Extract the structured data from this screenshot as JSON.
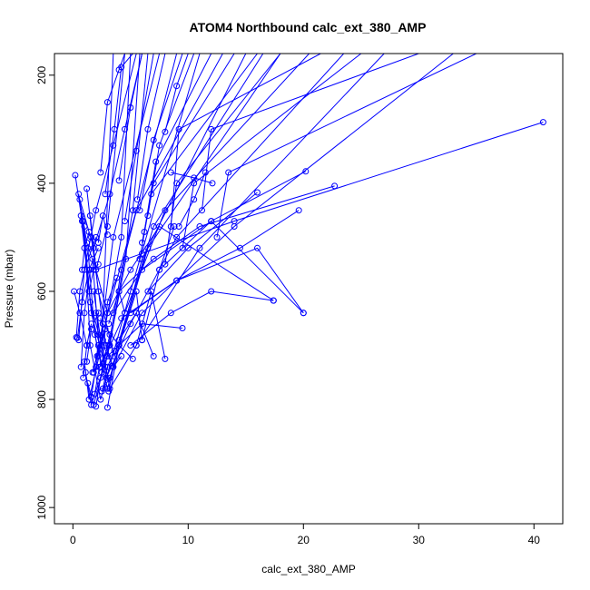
{
  "chart_data": {
    "type": "line",
    "title": "ATOM4 Northbound calc_ext_380_AMP",
    "xlabel": "calc_ext_380_AMP",
    "ylabel": "Pressure (mbar)",
    "xlim": [
      -1.6,
      42.5
    ],
    "ylim": [
      1030,
      160
    ],
    "y_reversed": true,
    "x_ticks": [
      0,
      10,
      20,
      30,
      40
    ],
    "y_ticks": [
      200,
      400,
      600,
      800,
      1000
    ],
    "line_color": "#0000ff",
    "point_color": "#0000ff",
    "marker": "open-circle",
    "grid": false,
    "legend": "none",
    "series": [
      {
        "values": [
          [
            0.5,
            690
          ],
          [
            1.0,
            560
          ],
          [
            2.0,
            450
          ],
          [
            3.5,
            330
          ],
          [
            5.5,
            160
          ]
        ]
      },
      {
        "values": [
          [
            0.2,
            385
          ],
          [
            0.8,
            470
          ],
          [
            1.5,
            620
          ],
          [
            2.5,
            700
          ],
          [
            3.5,
            160
          ]
        ]
      },
      {
        "values": [
          [
            0.5,
            420
          ],
          [
            1.2,
            510
          ],
          [
            2.0,
            560
          ],
          [
            3.0,
            480
          ],
          [
            4.5,
            160
          ]
        ]
      },
      {
        "values": [
          [
            0.6,
            430
          ],
          [
            1.8,
            520
          ],
          [
            3.2,
            420
          ],
          [
            4.5,
            300
          ],
          [
            6.0,
            160
          ]
        ]
      },
      {
        "values": [
          [
            0.7,
            460
          ],
          [
            1.4,
            600
          ],
          [
            2.2,
            720
          ],
          [
            3.5,
            500
          ],
          [
            7.5,
            160
          ]
        ]
      },
      {
        "values": [
          [
            0.9,
            470
          ],
          [
            1.6,
            640
          ],
          [
            2.8,
            740
          ],
          [
            4.2,
            560
          ],
          [
            9.0,
            160
          ]
        ]
      },
      {
        "values": [
          [
            1.0,
            480
          ],
          [
            1.5,
            700
          ],
          [
            2.4,
            800
          ],
          [
            5.0,
            600
          ],
          [
            11.0,
            160
          ]
        ]
      },
      {
        "values": [
          [
            1.2,
            410
          ],
          [
            2.0,
            560
          ],
          [
            3.0,
            640
          ],
          [
            5.5,
            450
          ],
          [
            13.0,
            160
          ]
        ]
      },
      {
        "values": [
          [
            1.3,
            520
          ],
          [
            1.9,
            680
          ],
          [
            3.0,
            780
          ],
          [
            6.0,
            540
          ],
          [
            15.0,
            160
          ]
        ]
      },
      {
        "values": [
          [
            1.5,
            460
          ],
          [
            2.2,
            600
          ],
          [
            3.6,
            720
          ],
          [
            7.0,
            480
          ],
          [
            16.5,
            160
          ]
        ]
      },
      {
        "values": [
          [
            1.6,
            500
          ],
          [
            2.6,
            660
          ],
          [
            4.0,
            700
          ],
          [
            6.5,
            520
          ],
          [
            18.0,
            160
          ]
        ]
      },
      {
        "values": [
          [
            1.7,
            540
          ],
          [
            2.4,
            740
          ],
          [
            4.5,
            640
          ],
          [
            8.0,
            450
          ],
          [
            20.5,
            160
          ]
        ]
      },
      {
        "values": [
          [
            1.8,
            600
          ],
          [
            2.9,
            760
          ],
          [
            5.0,
            660
          ],
          [
            9.0,
            500
          ],
          [
            23.5,
            160
          ]
        ]
      },
      {
        "values": [
          [
            2.0,
            640
          ],
          [
            3.2,
            780
          ],
          [
            5.5,
            700
          ],
          [
            11.0,
            520
          ],
          [
            27.0,
            160
          ]
        ]
      },
      {
        "values": [
          [
            2.2,
            680
          ],
          [
            3.5,
            740
          ],
          [
            6.0,
            640
          ],
          [
            14.0,
            480
          ],
          [
            33.0,
            160
          ]
        ]
      },
      {
        "values": [
          [
            1.0,
            730
          ],
          [
            1.4,
            800
          ],
          [
            2.6,
            690
          ],
          [
            4.2,
            500
          ],
          [
            5.0,
            160
          ]
        ]
      },
      {
        "values": [
          [
            1.1,
            750
          ],
          [
            1.6,
            810
          ],
          [
            3.0,
            720
          ],
          [
            4.6,
            540
          ],
          [
            5.8,
            160
          ]
        ]
      },
      {
        "values": [
          [
            1.3,
            770
          ],
          [
            1.8,
            810
          ],
          [
            3.2,
            700
          ],
          [
            5.2,
            450
          ],
          [
            6.5,
            160
          ]
        ]
      },
      {
        "values": [
          [
            2.4,
            380
          ],
          [
            3.0,
            250
          ],
          [
            4.0,
            190
          ],
          [
            4.5,
            160
          ]
        ]
      },
      {
        "values": [
          [
            2.8,
            420
          ],
          [
            3.6,
            300
          ],
          [
            4.2,
            185
          ],
          [
            5.2,
            160
          ]
        ]
      },
      {
        "values": [
          [
            4.0,
            395
          ],
          [
            5.0,
            260
          ],
          [
            6.0,
            160
          ]
        ]
      },
      {
        "values": [
          [
            4.5,
            470
          ],
          [
            5.5,
            340
          ],
          [
            7.0,
            160
          ]
        ]
      },
      {
        "values": [
          [
            5.6,
            430
          ],
          [
            6.5,
            300
          ],
          [
            8.0,
            160
          ]
        ]
      },
      {
        "values": [
          [
            5.8,
            450
          ],
          [
            7.0,
            320
          ],
          [
            9.5,
            160
          ]
        ]
      },
      {
        "values": [
          [
            6.5,
            460
          ],
          [
            7.5,
            330
          ],
          [
            10.5,
            160
          ]
        ]
      },
      {
        "values": [
          [
            6.2,
            490
          ],
          [
            7.2,
            360
          ],
          [
            12.0,
            160
          ]
        ]
      },
      {
        "values": [
          [
            6.0,
            510
          ],
          [
            7.0,
            400
          ],
          [
            14.0,
            160
          ]
        ]
      },
      {
        "values": [
          [
            5.8,
            540
          ],
          [
            6.8,
            420
          ],
          [
            16.0,
            160
          ]
        ]
      },
      {
        "values": [
          [
            8.0,
            550
          ],
          [
            9.0,
            400
          ],
          [
            18.0,
            160
          ]
        ]
      },
      {
        "values": [
          [
            8.5,
            480
          ],
          [
            9.2,
            300
          ],
          [
            21.5,
            160
          ]
        ]
      },
      {
        "values": [
          [
            9.5,
            520
          ],
          [
            10.5,
            400
          ],
          [
            25.0,
            160
          ]
        ]
      },
      {
        "values": [
          [
            11.2,
            450
          ],
          [
            12.0,
            300
          ],
          [
            30.0,
            160
          ]
        ]
      },
      {
        "values": [
          [
            12.5,
            500
          ],
          [
            13.5,
            380
          ],
          [
            35.0,
            160
          ]
        ]
      },
      {
        "values": [
          [
            8.0,
            305
          ],
          [
            9.0,
            220
          ],
          [
            10.0,
            160
          ]
        ]
      },
      {
        "values": [
          [
            3.0,
            640
          ],
          [
            5.0,
            560
          ],
          [
            7.5,
            480
          ],
          [
            17.4,
            617
          ]
        ]
      },
      {
        "values": [
          [
            3.5,
            640
          ],
          [
            6.0,
            560
          ],
          [
            12.0,
            470
          ],
          [
            20.0,
            640
          ]
        ]
      },
      {
        "values": [
          [
            5.0,
            640
          ],
          [
            9.0,
            580
          ],
          [
            14.5,
            520
          ],
          [
            19.6,
            450
          ]
        ]
      },
      {
        "values": [
          [
            4.0,
            600
          ],
          [
            7.0,
            540
          ],
          [
            11.0,
            480
          ],
          [
            22.7,
            405
          ]
        ]
      },
      {
        "values": [
          [
            2.0,
            560
          ],
          [
            6.0,
            530
          ],
          [
            14.0,
            470
          ],
          [
            40.8,
            287
          ]
        ]
      },
      {
        "values": [
          [
            6.5,
            600
          ],
          [
            10.0,
            520
          ],
          [
            16.0,
            417
          ]
        ]
      },
      {
        "values": [
          [
            7.5,
            560
          ],
          [
            12.0,
            470
          ],
          [
            20.2,
            378
          ]
        ]
      },
      {
        "values": [
          [
            4.2,
            650
          ],
          [
            9.0,
            580
          ],
          [
            16.0,
            520
          ],
          [
            20.0,
            640
          ]
        ]
      },
      {
        "values": [
          [
            5.0,
            700
          ],
          [
            8.5,
            640
          ],
          [
            12.0,
            600
          ],
          [
            17.4,
            617
          ]
        ]
      },
      {
        "values": [
          [
            3.0,
            720
          ],
          [
            6.0,
            660
          ],
          [
            9.5,
            668
          ]
        ]
      },
      {
        "values": [
          [
            4.0,
            690
          ],
          [
            5.5,
            640
          ],
          [
            7.0,
            720
          ]
        ]
      },
      {
        "values": [
          [
            5.5,
            700
          ],
          [
            6.8,
            600
          ],
          [
            8.0,
            725
          ]
        ]
      },
      {
        "values": [
          [
            2.5,
            785
          ],
          [
            3.2,
            760
          ],
          [
            4.0,
            700
          ],
          [
            5.2,
            725
          ]
        ]
      },
      {
        "values": [
          [
            3.0,
            815
          ],
          [
            4.0,
            700
          ],
          [
            5.5,
            600
          ],
          [
            6.0,
            690
          ]
        ]
      },
      {
        "values": [
          [
            2.5,
            750
          ],
          [
            3.0,
            620
          ],
          [
            3.8,
            575
          ]
        ]
      },
      {
        "values": [
          [
            3.1,
            660
          ],
          [
            4.0,
            600
          ],
          [
            4.5,
            640
          ]
        ]
      },
      {
        "values": [
          [
            6.0,
            690
          ],
          [
            7.5,
            560
          ],
          [
            8.8,
            480
          ]
        ]
      },
      {
        "values": [
          [
            9.2,
            480
          ],
          [
            10.5,
            430
          ],
          [
            11.5,
            380
          ]
        ]
      },
      {
        "values": [
          [
            8.5,
            380
          ],
          [
            10.5,
            390
          ],
          [
            12.1,
            400
          ]
        ]
      },
      {
        "values": [
          [
            2.2,
            510
          ],
          [
            2.6,
            460
          ],
          [
            3.0,
            495
          ]
        ]
      },
      {
        "values": [
          [
            0.3,
            685
          ],
          [
            0.6,
            600
          ],
          [
            1.0,
            560
          ],
          [
            2.0,
            500
          ]
        ]
      },
      {
        "values": [
          [
            0.4,
            686
          ],
          [
            0.8,
            620
          ],
          [
            1.4,
            560
          ],
          [
            2.2,
            520
          ]
        ]
      },
      {
        "values": [
          [
            0.7,
            740
          ],
          [
            1.0,
            640
          ],
          [
            1.5,
            560
          ]
        ]
      },
      {
        "values": [
          [
            0.9,
            760
          ],
          [
            1.2,
            700
          ],
          [
            1.6,
            660
          ]
        ]
      },
      {
        "values": [
          [
            1.6,
            795
          ],
          [
            2.0,
            740
          ],
          [
            2.6,
            660
          ]
        ]
      },
      {
        "values": [
          [
            2.0,
            813
          ],
          [
            2.4,
            760
          ],
          [
            3.2,
            680
          ]
        ]
      },
      {
        "values": [
          [
            1.7,
            750
          ],
          [
            2.1,
            720
          ],
          [
            2.8,
            670
          ]
        ]
      },
      {
        "values": [
          [
            1.9,
            790
          ],
          [
            2.3,
            740
          ],
          [
            3.1,
            700
          ]
        ]
      },
      {
        "values": [
          [
            2.6,
            780
          ],
          [
            3.0,
            740
          ],
          [
            3.6,
            710
          ]
        ]
      },
      {
        "values": [
          [
            3.1,
            785
          ],
          [
            3.5,
            740
          ],
          [
            4.2,
            720
          ]
        ]
      },
      {
        "values": [
          [
            1.2,
            730
          ],
          [
            1.6,
            670
          ],
          [
            2.2,
            640
          ]
        ]
      },
      {
        "values": [
          [
            1.8,
            750
          ],
          [
            2.2,
            700
          ],
          [
            2.8,
            670
          ]
        ]
      },
      {
        "values": [
          [
            0.8,
            560
          ],
          [
            1.0,
            520
          ],
          [
            1.4,
            490
          ]
        ]
      },
      {
        "values": [
          [
            1.4,
            600
          ],
          [
            1.8,
            560
          ],
          [
            2.2,
            550
          ]
        ]
      },
      {
        "values": [
          [
            0.1,
            600
          ],
          [
            0.6,
            640
          ],
          [
            1.2,
            700
          ]
        ]
      },
      {
        "values": [
          [
            2.4,
            650
          ],
          [
            2.9,
            700
          ],
          [
            3.4,
            738
          ]
        ]
      }
    ]
  }
}
